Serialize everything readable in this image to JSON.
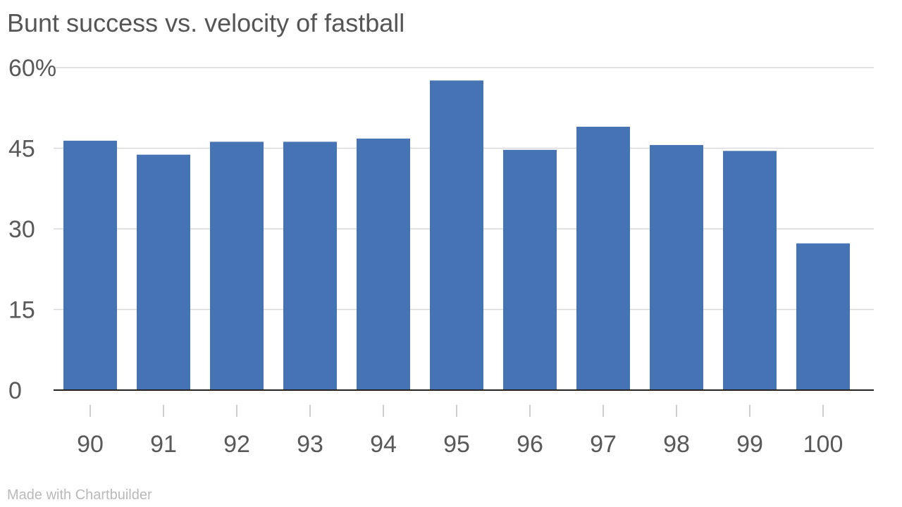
{
  "title": "Bunt success vs. velocity of fastball",
  "credit": "Made with Chartbuilder",
  "chart_data": {
    "type": "bar",
    "title": "Bunt success vs. velocity of fastball",
    "xlabel": "",
    "ylabel": "",
    "categories": [
      "90",
      "91",
      "92",
      "93",
      "94",
      "95",
      "96",
      "97",
      "98",
      "99",
      "100"
    ],
    "series": [
      {
        "values": [
          46.4,
          43.8,
          46.2,
          46.2,
          46.8,
          57.6,
          44.7,
          49.0,
          45.6,
          44.5,
          27.3
        ]
      }
    ],
    "ylim": [
      0,
      60
    ],
    "y_ticks": [
      0,
      15,
      30,
      45,
      60
    ],
    "y_tick_labels": [
      "0",
      "15",
      "30",
      "45",
      "60%"
    ],
    "grid": true,
    "bar_color": "#4573b3",
    "gridline_color": "#d9d9d9",
    "axis_color": "#222222"
  }
}
